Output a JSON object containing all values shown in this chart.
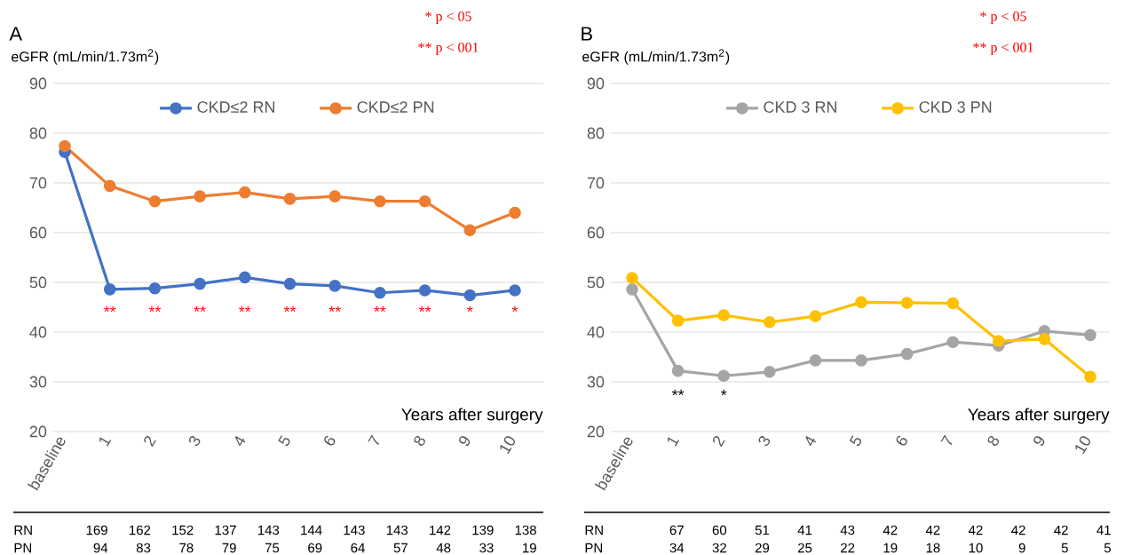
{
  "chart_data": [
    {
      "type": "line",
      "title": "A",
      "ylabel": "eGFR (mL/min/1.73m$^{2}$)",
      "xlabel": "Years after surgery",
      "categories": [
        "baseline",
        "1",
        "2",
        "3",
        "4",
        "5",
        "6",
        "7",
        "8",
        "9",
        "10"
      ],
      "series": [
        {
          "name": "CKD≤2 RN",
          "color": "#4472c4",
          "values": [
            76.2,
            48.6,
            48.8,
            49.7,
            51.0,
            49.7,
            49.3,
            47.9,
            48.4,
            47.4,
            48.4
          ]
        },
        {
          "name": "CKD≤2 PN",
          "color": "#ed7d31",
          "values": [
            77.4,
            69.4,
            66.3,
            67.3,
            68.1,
            66.8,
            67.3,
            66.3,
            66.3,
            60.5,
            64.0
          ]
        }
      ],
      "ylim": [
        20,
        90
      ],
      "yticks": [
        20,
        30,
        40,
        50,
        60,
        70,
        80,
        90
      ],
      "grid": "y",
      "legend": "top",
      "marker": "circle",
      "line_style": "solid",
      "annotations": [
        "* p < 05",
        "** p < 001",
        "**",
        "**",
        "**",
        "**",
        "**",
        "**",
        "**",
        "**",
        "*",
        "*",
        "RN",
        "169",
        "162",
        "152",
        "137",
        "143",
        "144",
        "143",
        "143",
        "142",
        "139",
        "138",
        "PN",
        "94",
        "83",
        "78",
        "79",
        "75",
        "69",
        "64",
        "57",
        "48",
        "33",
        "19"
      ]
    },
    {
      "type": "line",
      "title": "B",
      "ylabel": "eGFR (mL/min/1.73m$^{2}$)",
      "xlabel": "Years after surgery",
      "categories": [
        "baseline",
        "1",
        "2",
        "3",
        "4",
        "5",
        "6",
        "7",
        "8",
        "9",
        "10"
      ],
      "series": [
        {
          "name": "CKD  3 RN",
          "color": "#a5a5a5",
          "values": [
            48.6,
            32.2,
            31.2,
            32.0,
            34.3,
            34.3,
            35.6,
            38.0,
            37.3,
            40.2,
            39.4
          ]
        },
        {
          "name": "CKD  3 PN",
          "color": "#ffc000",
          "values": [
            50.9,
            42.3,
            43.4,
            42.0,
            43.2,
            46.0,
            45.9,
            45.8,
            38.2,
            38.6,
            31.0
          ]
        }
      ],
      "ylim": [
        20,
        90
      ],
      "yticks": [
        20,
        30,
        40,
        50,
        60,
        70,
        80,
        90
      ],
      "grid": "y",
      "legend": "top",
      "marker": "circle",
      "line_style": "solid",
      "annotations": [
        "* p < 05",
        "** p < 001",
        "**",
        "*",
        "RN",
        "67",
        "60",
        "51",
        "41",
        "43",
        "42",
        "42",
        "42",
        "42",
        "42",
        "41",
        "PN",
        "34",
        "32",
        "29",
        "25",
        "22",
        "19",
        "18",
        "10",
        "9",
        "5",
        "5"
      ]
    }
  ]
}
